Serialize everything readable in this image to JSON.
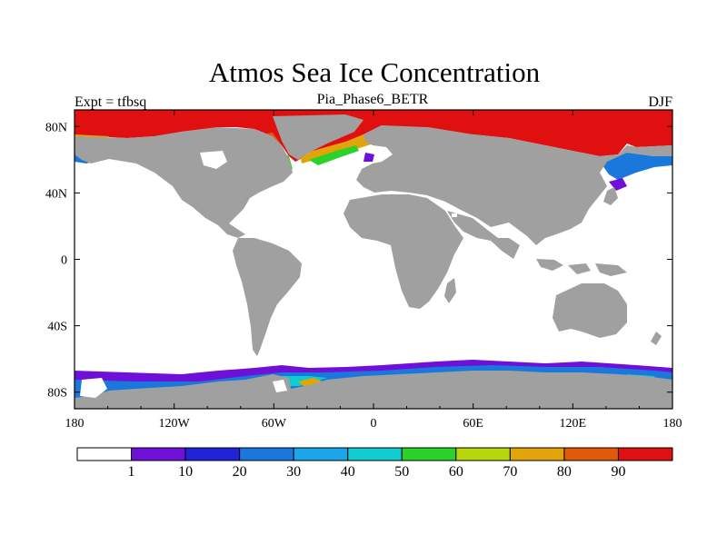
{
  "chart_data": {
    "type": "heatmap",
    "title": "Atmos Sea Ice Concentration",
    "subtitle": "Pia_Phase6_BETR",
    "left_label": "Expt = tfbsq",
    "right_label": "DJF",
    "x_ticks": [
      "180",
      "120W",
      "60W",
      "0",
      "60E",
      "120E",
      "180"
    ],
    "x_tick_values": [
      -180,
      -120,
      -60,
      0,
      60,
      120,
      180
    ],
    "y_ticks": [
      "80N",
      "40N",
      "0",
      "40S",
      "80S"
    ],
    "y_tick_values": [
      80,
      40,
      0,
      -40,
      -80
    ],
    "xlim": [
      -180,
      180
    ],
    "ylim": [
      -90,
      90
    ],
    "colorbar": {
      "levels": [
        "1",
        "10",
        "20",
        "30",
        "40",
        "50",
        "60",
        "70",
        "80",
        "90"
      ],
      "colors": [
        "#ffffff",
        "#6f10d8",
        "#1f24d8",
        "#1a78dc",
        "#1aa6e8",
        "#10ccd0",
        "#2ad22a",
        "#b8d60c",
        "#e3a40a",
        "#e05a0a",
        "#e01010"
      ]
    },
    "colors": {
      "land": "#a0a0a0",
      "ocean": "#ffffff",
      "ice_high": "#e01010"
    }
  }
}
